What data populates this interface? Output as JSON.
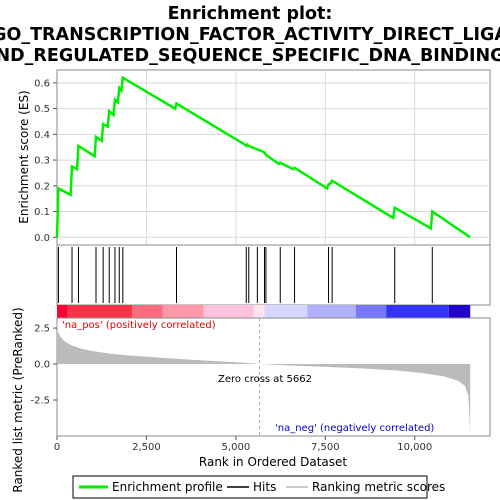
{
  "title_lines": [
    "Enrichment plot:",
    "GO_TRANSCRIPTION_FACTOR_ACTIVITY_DIRECT_LIGA",
    "ND_REGULATED_SEQUENCE_SPECIFIC_DNA_BINDING"
  ],
  "colors": {
    "es_line": "#00ee00",
    "hits": "#000000",
    "metric_fill": "#bbbbbb",
    "pos_label": "#dd0000",
    "neg_label": "#0000cc",
    "zero_cross_line": "#aaaaaa"
  },
  "chart_data": [
    {
      "type": "line",
      "name": "enrichment-score-panel",
      "ylabel": "Enrichment score (ES)",
      "xlim": [
        0,
        11600
      ],
      "ylim": [
        -0.03,
        0.65
      ],
      "yticks": [
        "0.0",
        "0.1",
        "0.2",
        "0.3",
        "0.4",
        "0.5",
        "0.6"
      ],
      "grid": true,
      "series": [
        {
          "name": "Enrichment profile",
          "x": [
            0,
            40,
            380,
            420,
            560,
            600,
            1050,
            1090,
            1250,
            1290,
            1420,
            1460,
            1580,
            1620,
            1700,
            1740,
            1800,
            1840,
            3300,
            3340,
            5250,
            5290,
            5320,
            5360,
            5800,
            5840,
            6200,
            6240,
            6600,
            6640,
            7550,
            7590,
            7650,
            7690,
            9400,
            9440,
            10450,
            10490,
            11550
          ],
          "y": [
            0.0,
            0.19,
            0.165,
            0.275,
            0.265,
            0.355,
            0.315,
            0.39,
            0.375,
            0.44,
            0.43,
            0.49,
            0.475,
            0.535,
            0.525,
            0.58,
            0.57,
            0.62,
            0.5,
            0.52,
            0.36,
            0.355,
            0.36,
            0.355,
            0.33,
            0.32,
            0.285,
            0.29,
            0.265,
            0.27,
            0.19,
            0.205,
            0.21,
            0.22,
            0.075,
            0.115,
            0.035,
            0.1,
            0.0
          ]
        }
      ]
    },
    {
      "type": "scatter",
      "name": "hits-panel",
      "xlim": [
        0,
        11600
      ],
      "hit_positions": [
        40,
        420,
        600,
        1090,
        1290,
        1460,
        1620,
        1740,
        1840,
        3340,
        5290,
        5360,
        5600,
        5800,
        5840,
        6240,
        6640,
        7590,
        7690,
        9440,
        10490
      ]
    },
    {
      "type": "heatmap",
      "name": "rank-color-bar",
      "xlim": [
        0,
        11600
      ],
      "segments": [
        {
          "end": 300,
          "color": "#ff0033"
        },
        {
          "end": 2100,
          "color": "#ff3347"
        },
        {
          "end": 2950,
          "color": "#ff6b7f"
        },
        {
          "end": 4100,
          "color": "#ff99aa"
        },
        {
          "end": 5500,
          "color": "#ffc2de"
        },
        {
          "end": 5800,
          "color": "#ffe4f0"
        },
        {
          "end": 7000,
          "color": "#d6d6ff"
        },
        {
          "end": 8350,
          "color": "#b0b0ff"
        },
        {
          "end": 9200,
          "color": "#7777ff"
        },
        {
          "end": 10950,
          "color": "#3333ff"
        },
        {
          "end": 11550,
          "color": "#1f00cc"
        }
      ]
    },
    {
      "type": "area",
      "name": "ranked-metric-panel",
      "xlabel": "Rank in Ordered Dataset",
      "ylabel": "Ranked list metric (PreRanked)",
      "xlim": [
        0,
        11600
      ],
      "ylim": [
        -5.0,
        3.2
      ],
      "xticks": [
        "0",
        "2,500",
        "5,000",
        "7,500",
        "10,000"
      ],
      "xtick_values": [
        0,
        2500,
        5000,
        7500,
        10000
      ],
      "yticks": [
        "2.5",
        "0.0",
        "-2.5"
      ],
      "ytick_values": [
        2.5,
        0.0,
        -2.5
      ],
      "series": [
        {
          "name": "Ranking metric scores",
          "x": [
            0,
            30,
            100,
            200,
            400,
            700,
            1000,
            1500,
            2000,
            3000,
            4000,
            5000,
            5662,
            6500,
            7500,
            8500,
            9500,
            10200,
            10800,
            11200,
            11400,
            11500,
            11550
          ],
          "y": [
            3.0,
            2.2,
            1.9,
            1.6,
            1.3,
            1.05,
            0.9,
            0.72,
            0.6,
            0.42,
            0.27,
            0.12,
            0.0,
            -0.1,
            -0.2,
            -0.3,
            -0.45,
            -0.62,
            -0.85,
            -1.15,
            -1.5,
            -2.2,
            -4.8
          ]
        }
      ],
      "zero_cross": 5662,
      "annotations": {
        "zero_cross": "Zero cross at 5662",
        "pos": "'na_pos' (positively correlated)",
        "neg": "'na_neg' (negatively correlated)"
      }
    }
  ],
  "legend": {
    "items": [
      {
        "label": "Enrichment profile",
        "color": "#00ee00"
      },
      {
        "label": "Hits",
        "color": "#000000"
      },
      {
        "label": "Ranking metric scores",
        "color": "#bbbbbb"
      }
    ]
  }
}
